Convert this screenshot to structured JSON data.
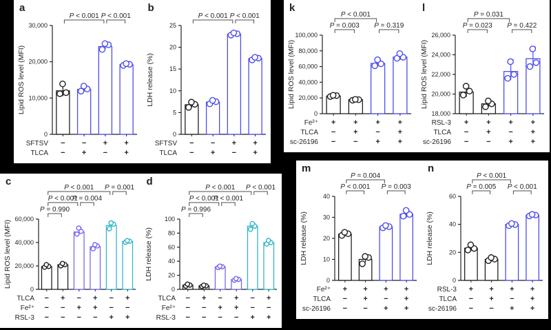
{
  "page": {
    "background": "#000000",
    "panel_background": "#ffffff"
  },
  "colors": {
    "black": "#231f20",
    "blue": "#4d4dee",
    "purple": "#7767ee",
    "cyan": "#33b6c8",
    "axis": "#231f20",
    "bracket": "#4d4d4f"
  },
  "chart_data": [
    {
      "id": "a",
      "type": "bar",
      "ylabel": "Lipid ROS level (MFI)",
      "ymin": 0,
      "ymax": 30000,
      "yticks": [
        0,
        10000,
        20000,
        30000
      ],
      "bracket_levels": 1,
      "grid": false,
      "legend": "none",
      "bars": [
        {
          "color": "black",
          "value": 12000,
          "err_top": 14100,
          "points": [
            11200,
            11500,
            13900
          ]
        },
        {
          "color": "blue",
          "value": 12400,
          "err_top": 13400,
          "points": [
            11900,
            12500,
            13300
          ]
        },
        {
          "color": "blue",
          "value": 24200,
          "err_top": 25200,
          "points": [
            23400,
            24700,
            25000
          ]
        },
        {
          "color": "blue",
          "value": 19200,
          "err_top": 19800,
          "points": [
            19000,
            19300,
            19500
          ]
        }
      ],
      "pvalues": [
        {
          "label": "P < 0.001",
          "from": 0,
          "to": 2,
          "level": 0
        },
        {
          "label": "P < 0.001",
          "from": 2,
          "to": 3,
          "level": 0
        }
      ],
      "rows": [
        {
          "label": "SFTSV",
          "signs": [
            "−",
            "−",
            "+",
            "+"
          ]
        },
        {
          "label": "TLCA",
          "signs": [
            "−",
            "+",
            "−",
            "+"
          ]
        }
      ]
    },
    {
      "id": "b",
      "type": "bar",
      "ylabel": "LDH release (%)",
      "ymin": 0,
      "ymax": 25,
      "yticks": [
        0,
        5,
        10,
        15,
        20,
        25
      ],
      "bracket_levels": 1,
      "grid": false,
      "legend": "none",
      "bars": [
        {
          "color": "black",
          "value": 6.8,
          "err_top": 7.6,
          "points": [
            6.2,
            6.9,
            7.4
          ]
        },
        {
          "color": "blue",
          "value": 7.4,
          "err_top": 8.0,
          "points": [
            7.0,
            7.5,
            7.8
          ]
        },
        {
          "color": "blue",
          "value": 23.0,
          "err_top": 23.5,
          "points": [
            22.8,
            23.1,
            23.3
          ]
        },
        {
          "color": "blue",
          "value": 17.4,
          "err_top": 17.9,
          "points": [
            17.1,
            17.5,
            17.7
          ]
        }
      ],
      "pvalues": [
        {
          "label": "P < 0.001",
          "from": 0,
          "to": 2,
          "level": 0
        },
        {
          "label": "P < 0.001",
          "from": 2,
          "to": 3,
          "level": 0
        }
      ],
      "rows": [
        {
          "label": "SFTSV",
          "signs": [
            "−",
            "−",
            "+",
            "+"
          ]
        },
        {
          "label": "TLCA",
          "signs": [
            "−",
            "+",
            "−",
            "+"
          ]
        }
      ]
    },
    {
      "id": "k",
      "type": "bar",
      "ylabel": "Lipid ROS level (MFI)",
      "ymin": 0,
      "ymax": 100000,
      "yticks": [
        0,
        20000,
        40000,
        60000,
        80000,
        100000
      ],
      "bracket_levels": 2,
      "grid": false,
      "legend": "none",
      "bars": [
        {
          "color": "black",
          "value": 22500,
          "err_top": 24000,
          "points": [
            21800,
            23000,
            23400
          ]
        },
        {
          "color": "black",
          "value": 17800,
          "err_top": 18700,
          "points": [
            17100,
            17800,
            18200
          ]
        },
        {
          "color": "blue",
          "value": 64000,
          "err_top": 69500,
          "points": [
            61000,
            63500,
            68700
          ]
        },
        {
          "color": "blue",
          "value": 72000,
          "err_top": 77000,
          "points": [
            70500,
            71800,
            76500
          ]
        }
      ],
      "pvalues": [
        {
          "label": "P < 0.001",
          "from": 0,
          "to": 2,
          "level": 1
        },
        {
          "label": "P = 0.003",
          "from": 0,
          "to": 1,
          "level": 0
        },
        {
          "label": "P = 0.319",
          "from": 2,
          "to": 3,
          "level": 0
        }
      ],
      "rows": [
        {
          "label": "Fe²⁺",
          "signs": [
            "+",
            "+",
            "+",
            "+"
          ]
        },
        {
          "label": "TLCA",
          "signs": [
            "−",
            "+",
            "−",
            "+"
          ]
        },
        {
          "label": "sc-26196",
          "signs": [
            "−",
            "−",
            "+",
            "+"
          ]
        }
      ]
    },
    {
      "id": "l",
      "type": "bar",
      "ylabel": "Lipid ROS level (MFI)",
      "ymin": 18000,
      "ymax": 26000,
      "yticks": [
        18000,
        20000,
        22000,
        24000,
        26000
      ],
      "bracket_levels": 2,
      "grid": false,
      "legend": "none",
      "bars": [
        {
          "color": "black",
          "value": 20200,
          "err_top": 20900,
          "points": [
            19900,
            20300,
            20800
          ]
        },
        {
          "color": "black",
          "value": 19000,
          "err_top": 19400,
          "points": [
            18700,
            19000,
            19300
          ]
        },
        {
          "color": "blue",
          "value": 22300,
          "err_top": 23500,
          "points": [
            21600,
            22000,
            23300
          ]
        },
        {
          "color": "blue",
          "value": 23600,
          "err_top": 24800,
          "points": [
            22800,
            23200,
            24600
          ]
        }
      ],
      "pvalues": [
        {
          "label": "P = 0.031",
          "from": 0,
          "to": 2,
          "level": 1
        },
        {
          "label": "P = 0.023",
          "from": 0,
          "to": 1,
          "level": 0
        },
        {
          "label": "P = 0.422",
          "from": 2,
          "to": 3,
          "level": 0
        }
      ],
      "rows": [
        {
          "label": "RSL-3",
          "signs": [
            "+",
            "+",
            "+",
            "+"
          ]
        },
        {
          "label": "TLCA",
          "signs": [
            "−",
            "+",
            "−",
            "+"
          ]
        },
        {
          "label": "sc-26196",
          "signs": [
            "−",
            "−",
            "+",
            "+"
          ]
        }
      ]
    },
    {
      "id": "c",
      "type": "bar",
      "ylabel": "Lipid ROS level (MFI)",
      "ymin": 0,
      "ymax": 60000,
      "yticks": [
        0,
        20000,
        40000,
        60000
      ],
      "bracket_levels": 3,
      "grid": false,
      "legend": "none",
      "bars": [
        {
          "color": "black",
          "value": 19500,
          "err_top": 21600,
          "points": [
            18900,
            19600,
            21100
          ]
        },
        {
          "color": "black",
          "value": 21000,
          "err_top": 22400,
          "points": [
            20100,
            21100,
            22100
          ]
        },
        {
          "color": "purple",
          "value": 49000,
          "err_top": 52700,
          "points": [
            47200,
            49500,
            52300
          ]
        },
        {
          "color": "purple",
          "value": 36500,
          "err_top": 38600,
          "points": [
            34700,
            37100,
            38100
          ]
        },
        {
          "color": "cyan",
          "value": 54500,
          "err_top": 57200,
          "points": [
            51700,
            55600,
            56700
          ]
        },
        {
          "color": "cyan",
          "value": 41000,
          "err_top": 42000,
          "points": [
            40200,
            41100,
            41600
          ]
        }
      ],
      "pvalues": [
        {
          "label": "P < 0.001",
          "from": 0,
          "to": 4,
          "level": 2
        },
        {
          "label": "P = 0.001",
          "from": 4,
          "to": 5,
          "level": 2
        },
        {
          "label": "P < 0.001",
          "from": 0,
          "to": 2,
          "level": 1
        },
        {
          "label": "P = 0.004",
          "from": 2,
          "to": 3,
          "level": 1
        },
        {
          "label": "P = 0.990",
          "from": 0,
          "to": 1,
          "level": 0
        }
      ],
      "rows": [
        {
          "label": "TLCA",
          "signs": [
            "−",
            "+",
            "−",
            "+",
            "−",
            "+"
          ]
        },
        {
          "label": "Fe²⁺",
          "signs": [
            "−",
            "−",
            "+",
            "+",
            "−",
            "−"
          ]
        },
        {
          "label": "RSL-3",
          "signs": [
            "−",
            "−",
            "−",
            "−",
            "+",
            "+"
          ]
        }
      ]
    },
    {
      "id": "d",
      "type": "bar",
      "ylabel": "LDH release (%)",
      "ymin": 0,
      "ymax": 100,
      "yticks": [
        0,
        20,
        40,
        60,
        80,
        100
      ],
      "bracket_levels": 3,
      "grid": false,
      "legend": "none",
      "bars": [
        {
          "color": "black",
          "value": 6,
          "err_top": 7.9,
          "points": [
            4.6,
            6.1,
            7.4
          ]
        },
        {
          "color": "black",
          "value": 5,
          "err_top": 6.4,
          "points": [
            4.1,
            5.0,
            6.0
          ]
        },
        {
          "color": "purple",
          "value": 32,
          "err_top": 33.6,
          "points": [
            31.0,
            32.2,
            33.0
          ]
        },
        {
          "color": "purple",
          "value": 14,
          "err_top": 15.8,
          "points": [
            13.0,
            14.2,
            15.3
          ]
        },
        {
          "color": "cyan",
          "value": 90,
          "err_top": 94.0,
          "points": [
            85.5,
            90.0,
            93.5
          ]
        },
        {
          "color": "cyan",
          "value": 66.5,
          "err_top": 70.0,
          "points": [
            64.5,
            66.5,
            69.5
          ]
        }
      ],
      "pvalues": [
        {
          "label": "P < 0.001",
          "from": 0,
          "to": 4,
          "level": 2
        },
        {
          "label": "P < 0.001",
          "from": 4,
          "to": 5,
          "level": 2
        },
        {
          "label": "P < 0.001",
          "from": 0,
          "to": 2,
          "level": 1
        },
        {
          "label": "P < 0.001",
          "from": 2,
          "to": 3,
          "level": 1
        },
        {
          "label": "P = 0.996",
          "from": 0,
          "to": 1,
          "level": 0
        }
      ],
      "rows": [
        {
          "label": "TLCA",
          "signs": [
            "−",
            "+",
            "−",
            "+",
            "−",
            "+"
          ]
        },
        {
          "label": "Fe²⁺",
          "signs": [
            "−",
            "−",
            "+",
            "+",
            "−",
            "−"
          ]
        },
        {
          "label": "RSL-3",
          "signs": [
            "−",
            "−",
            "−",
            "−",
            "+",
            "+"
          ]
        }
      ]
    },
    {
      "id": "m",
      "type": "bar",
      "ylabel": "LDH release (%)",
      "ymin": 0,
      "ymax": 40,
      "yticks": [
        0,
        10,
        20,
        30,
        40
      ],
      "bracket_levels": 2,
      "grid": false,
      "legend": "none",
      "bars": [
        {
          "color": "black",
          "value": 22,
          "err_top": 23.3,
          "points": [
            21.4,
            22.2,
            22.9
          ]
        },
        {
          "color": "black",
          "value": 10,
          "err_top": 11.9,
          "points": [
            7.9,
            10.9,
            11.4
          ]
        },
        {
          "color": "blue",
          "value": 25.5,
          "err_top": 26.5,
          "points": [
            25.0,
            25.6,
            26.1
          ]
        },
        {
          "color": "blue",
          "value": 31.5,
          "err_top": 33.9,
          "points": [
            30.6,
            31.4,
            33.3
          ]
        }
      ],
      "pvalues": [
        {
          "label": "P = 0.004",
          "from": 0,
          "to": 2,
          "level": 1
        },
        {
          "label": "P < 0.001",
          "from": 0,
          "to": 1,
          "level": 0
        },
        {
          "label": "P = 0.003",
          "from": 2,
          "to": 3,
          "level": 0
        }
      ],
      "rows": [
        {
          "label": "Fe²⁺",
          "signs": [
            "+",
            "+",
            "+",
            "+"
          ]
        },
        {
          "label": "TLCA",
          "signs": [
            "−",
            "+",
            "−",
            "+"
          ]
        },
        {
          "label": "sc-26196",
          "signs": [
            "−",
            "−",
            "+",
            "+"
          ]
        }
      ]
    },
    {
      "id": "n",
      "type": "bar",
      "ylabel": "LDH release (%)",
      "ymin": 0,
      "ymax": 60,
      "yticks": [
        0,
        20,
        40,
        60
      ],
      "bracket_levels": 2,
      "grid": false,
      "legend": "none",
      "bars": [
        {
          "color": "black",
          "value": 23,
          "err_top": 25.9,
          "points": [
            21.7,
            22.8,
            25.4
          ]
        },
        {
          "color": "black",
          "value": 15,
          "err_top": 16.9,
          "points": [
            14.1,
            15.2,
            16.3
          ]
        },
        {
          "color": "blue",
          "value": 40,
          "err_top": 41.2,
          "points": [
            39.1,
            39.9,
            40.6
          ]
        },
        {
          "color": "blue",
          "value": 46.5,
          "err_top": 47.6,
          "points": [
            46.0,
            46.6,
            47.1
          ]
        }
      ],
      "pvalues": [
        {
          "label": "P < 0.001",
          "from": 0,
          "to": 2,
          "level": 1
        },
        {
          "label": "P = 0.005",
          "from": 0,
          "to": 1,
          "level": 0
        },
        {
          "label": "P < 0.001",
          "from": 2,
          "to": 3,
          "level": 0
        }
      ],
      "rows": [
        {
          "label": "RSL-3",
          "signs": [
            "+",
            "+",
            "+",
            "+"
          ]
        },
        {
          "label": "TLCA",
          "signs": [
            "−",
            "+",
            "−",
            "+"
          ]
        },
        {
          "label": "sc-26196",
          "signs": [
            "−",
            "−",
            "+",
            "+"
          ]
        }
      ]
    }
  ]
}
